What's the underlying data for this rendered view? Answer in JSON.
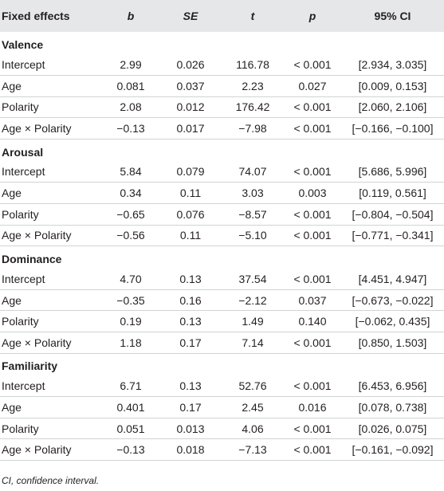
{
  "header": [
    "Fixed effects",
    "b",
    "SE",
    "t",
    "p",
    "95% CI"
  ],
  "sections": [
    {
      "name": "Valence",
      "rows": [
        [
          "Intercept",
          "2.99",
          "0.026",
          "116.78",
          "< 0.001",
          "[2.934, 3.035]"
        ],
        [
          "Age",
          "0.081",
          "0.037",
          "2.23",
          "0.027",
          "[0.009, 0.153]"
        ],
        [
          "Polarity",
          "2.08",
          "0.012",
          "176.42",
          "< 0.001",
          "[2.060, 2.106]"
        ],
        [
          "Age × Polarity",
          "−0.13",
          "0.017",
          "−7.98",
          "< 0.001",
          "[−0.166, −0.100]"
        ]
      ]
    },
    {
      "name": "Arousal",
      "rows": [
        [
          "Intercept",
          "5.84",
          "0.079",
          "74.07",
          "< 0.001",
          "[5.686, 5.996]"
        ],
        [
          "Age",
          "0.34",
          "0.11",
          "3.03",
          "0.003",
          "[0.119, 0.561]"
        ],
        [
          "Polarity",
          "−0.65",
          "0.076",
          "−8.57",
          "< 0.001",
          "[−0.804, −0.504]"
        ],
        [
          "Age × Polarity",
          "−0.56",
          "0.11",
          "−5.10",
          "< 0.001",
          "[−0.771, −0.341]"
        ]
      ]
    },
    {
      "name": "Dominance",
      "rows": [
        [
          "Intercept",
          "4.70",
          "0.13",
          "37.54",
          "< 0.001",
          "[4.451, 4.947]"
        ],
        [
          "Age",
          "−0.35",
          "0.16",
          "−2.12",
          "0.037",
          "[−0.673, −0.022]"
        ],
        [
          "Polarity",
          "0.19",
          "0.13",
          "1.49",
          "0.140",
          "[−0.062, 0.435]"
        ],
        [
          "Age × Polarity",
          "1.18",
          "0.17",
          "7.14",
          "< 0.001",
          "[0.850, 1.503]"
        ]
      ]
    },
    {
      "name": "Familiarity",
      "rows": [
        [
          "Intercept",
          "6.71",
          "0.13",
          "52.76",
          "< 0.001",
          "[6.453, 6.956]"
        ],
        [
          "Age",
          "0.401",
          "0.17",
          "2.45",
          "0.016",
          "[0.078, 0.738]"
        ],
        [
          "Polarity",
          "0.051",
          "0.013",
          "4.06",
          "< 0.001",
          "[0.026, 0.075]"
        ],
        [
          "Age × Polarity",
          "−0.13",
          "0.018",
          "−7.13",
          "< 0.001",
          "[−0.161, −0.092]"
        ]
      ]
    }
  ],
  "footnote": "CI, confidence interval.",
  "colors": {
    "header_bg": "#e6e7e8",
    "rule": "#d1d3d4",
    "text": "#231f20"
  }
}
